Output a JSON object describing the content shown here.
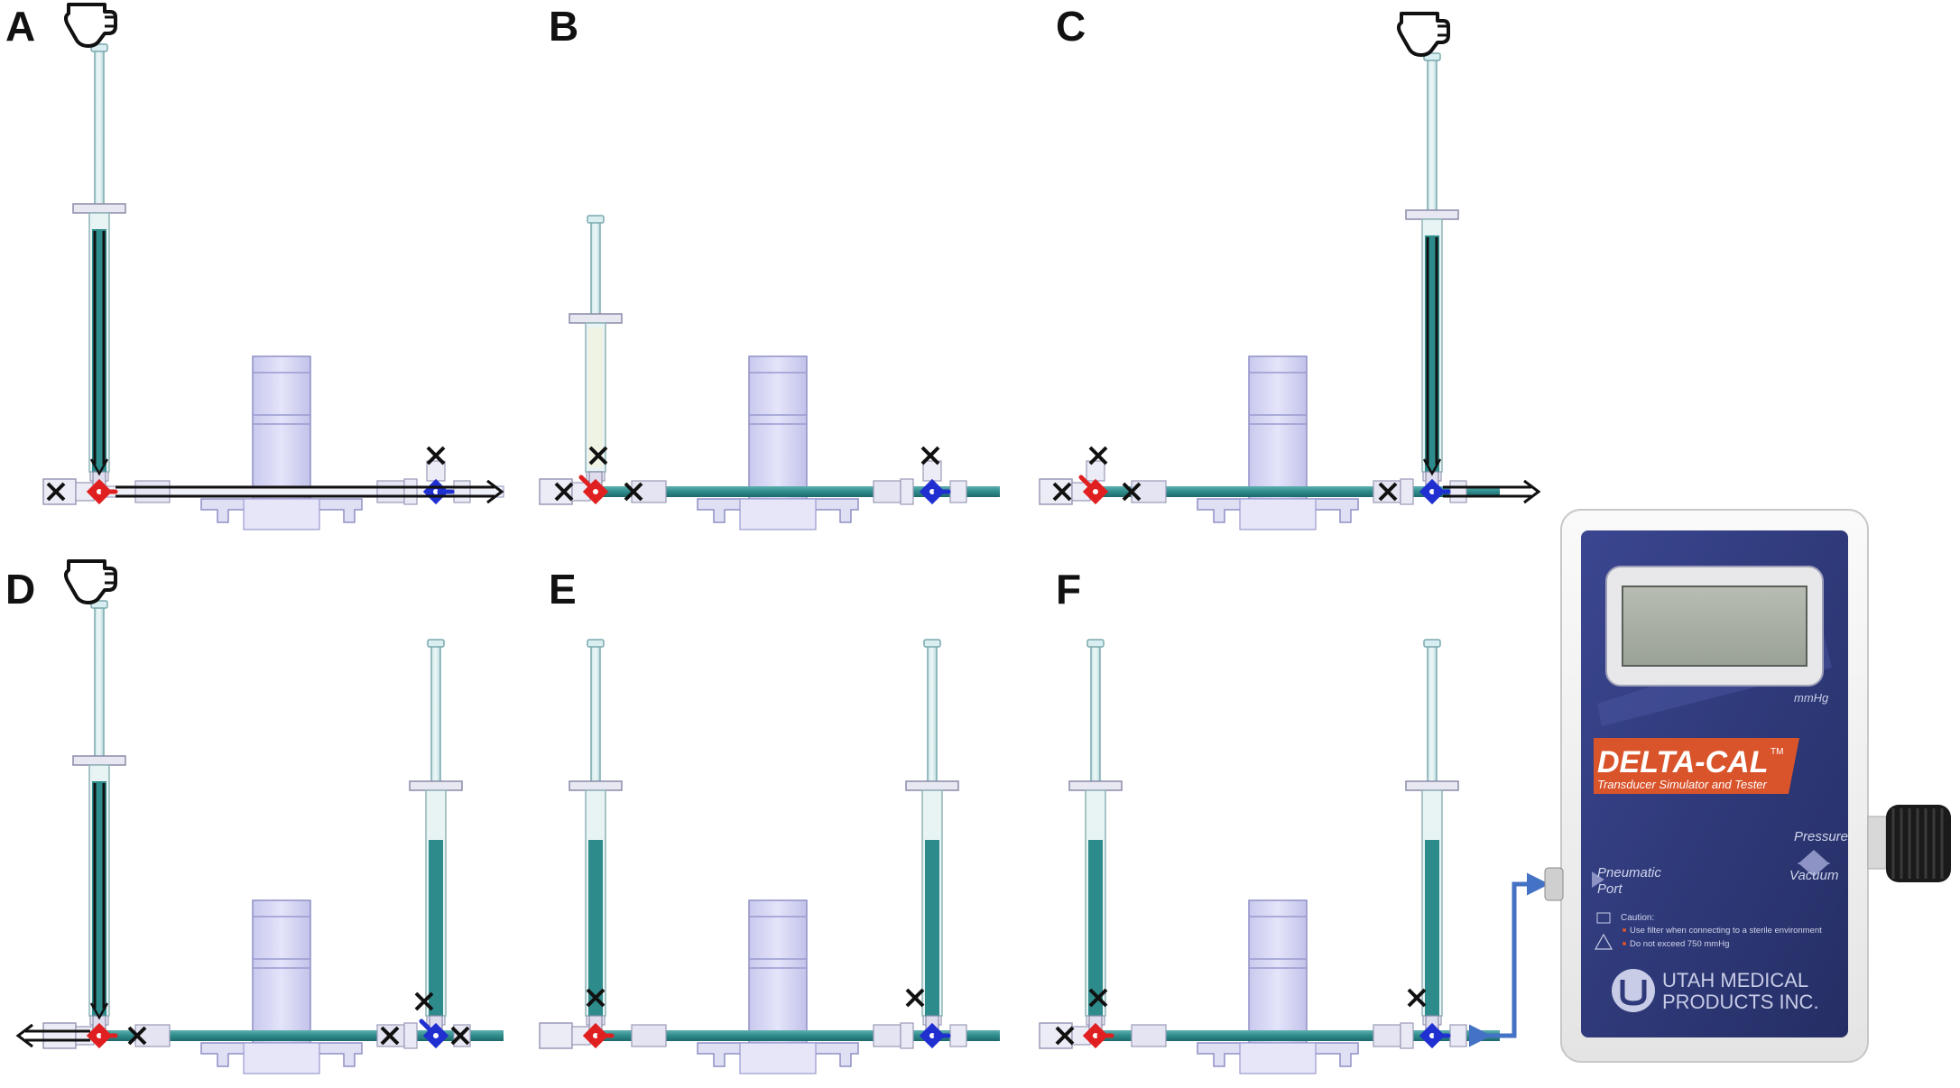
{
  "panels": [
    {
      "label": "A"
    },
    {
      "label": "B"
    },
    {
      "label": "C"
    },
    {
      "label": "D"
    },
    {
      "label": "E"
    },
    {
      "label": "F"
    }
  ],
  "device": {
    "unit": "mmHg",
    "brand": "DELTA-CAL",
    "trademark": "TM",
    "subtitle": "Transducer Simulator and Tester",
    "pressure": "Pressure",
    "vacuum": "Vacuum",
    "port_line1": "Pneumatic",
    "port_line2": "Port",
    "caution_title": "Caution:",
    "caution_1": "Use filter when connecting to a sterile environment",
    "caution_2": "Do not exceed 750 mmHg",
    "maker_line1": "UTAH MEDICAL",
    "maker_line2": "PRODUCTS INC."
  },
  "colors": {
    "fluid": "#2e8b8b",
    "left_valve": "#e02020",
    "right_valve": "#1f2fd0",
    "device_body": "#2f3a7a",
    "device_band": "#d9532b",
    "connector": "#4472c4"
  }
}
